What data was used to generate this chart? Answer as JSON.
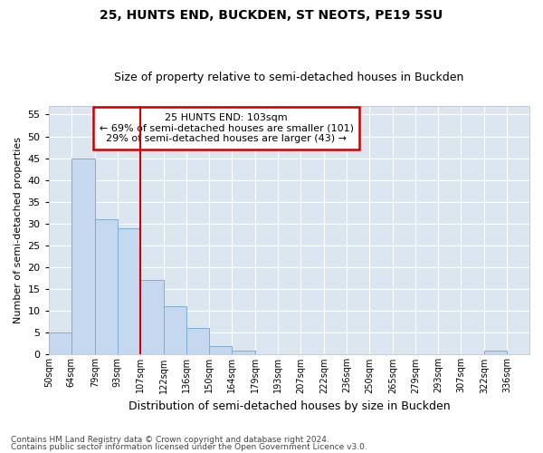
{
  "title1": "25, HUNTS END, BUCKDEN, ST NEOTS, PE19 5SU",
  "title2": "Size of property relative to semi-detached houses in Buckden",
  "xlabel": "Distribution of semi-detached houses by size in Buckden",
  "ylabel": "Number of semi-detached properties",
  "footnote1": "Contains HM Land Registry data © Crown copyright and database right 2024.",
  "footnote2": "Contains public sector information licensed under the Open Government Licence v3.0.",
  "annotation_line1": "25 HUNTS END: 103sqm",
  "annotation_line2": "← 69% of semi-detached houses are smaller (101)",
  "annotation_line3": "29% of semi-detached houses are larger (43) →",
  "bar_color": "#c5d8ef",
  "bar_edge_color": "#7badd4",
  "vline_color": "#cc0000",
  "vline_x": 107,
  "categories": [
    "50sqm",
    "64sqm",
    "79sqm",
    "93sqm",
    "107sqm",
    "122sqm",
    "136sqm",
    "150sqm",
    "164sqm",
    "179sqm",
    "193sqm",
    "207sqm",
    "222sqm",
    "236sqm",
    "250sqm",
    "265sqm",
    "279sqm",
    "293sqm",
    "307sqm",
    "322sqm",
    "336sqm"
  ],
  "bin_edges": [
    50,
    64,
    79,
    93,
    107,
    122,
    136,
    150,
    164,
    179,
    193,
    207,
    222,
    236,
    250,
    265,
    279,
    293,
    307,
    322,
    336,
    350
  ],
  "values": [
    5,
    45,
    31,
    29,
    17,
    11,
    6,
    2,
    1,
    0,
    0,
    0,
    0,
    0,
    0,
    0,
    0,
    0,
    0,
    1,
    0
  ],
  "ylim": [
    0,
    57
  ],
  "yticks": [
    0,
    5,
    10,
    15,
    20,
    25,
    30,
    35,
    40,
    45,
    50,
    55
  ],
  "fig_bg_color": "#ffffff",
  "plot_bg_color": "#dce6f0",
  "grid_color": "#ffffff",
  "annotation_box_edge": "#cc0000",
  "annotation_box_face": "#ffffff",
  "title1_fontsize": 10,
  "title2_fontsize": 9,
  "xlabel_fontsize": 9,
  "ylabel_fontsize": 8,
  "footnote_fontsize": 6.5
}
